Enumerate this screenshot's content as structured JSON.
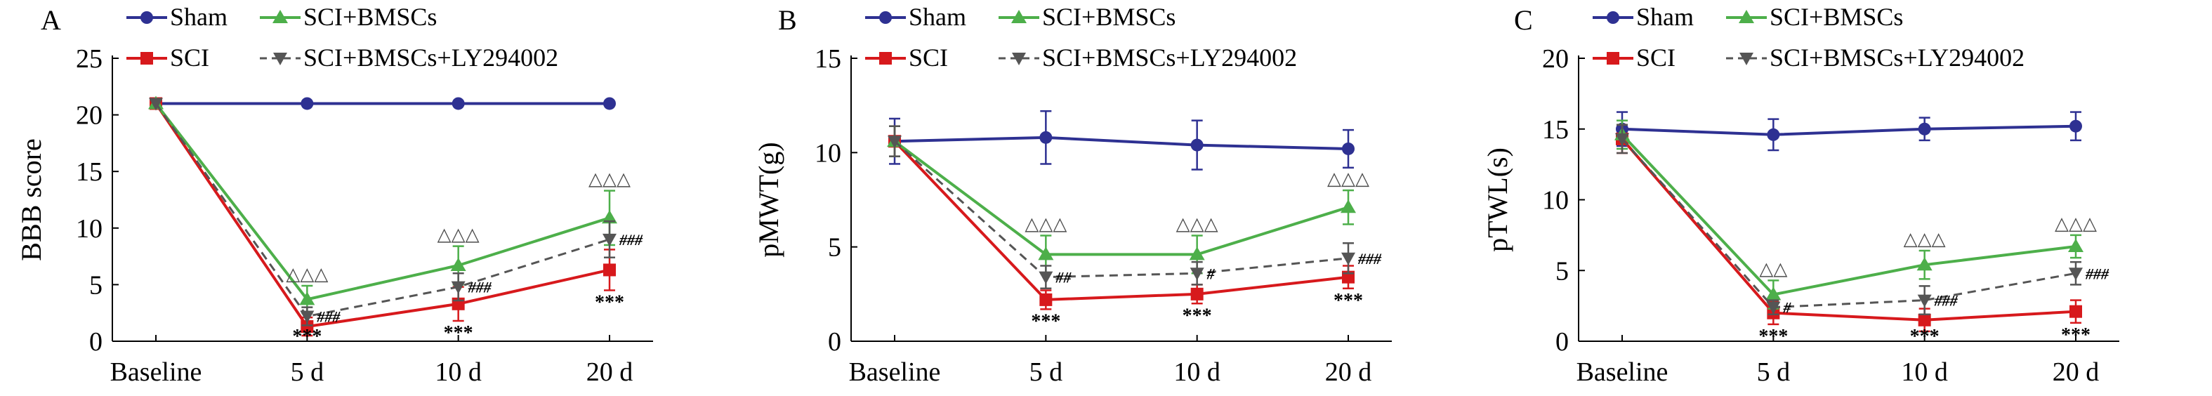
{
  "colors": {
    "Sham": "#2e3192",
    "SCI": "#d7191c",
    "SCI+BMSCs": "#4daf4a",
    "SCI+BMSCs+LY294002": "#555555",
    "axis": "#000000"
  },
  "chart_data": [
    {
      "type": "line",
      "panel": "A",
      "categories": [
        "Baseline",
        "5 d",
        "10 d",
        "20 d"
      ],
      "ylabel": "BBB score",
      "xlabel": "",
      "ylim": [
        0,
        25
      ],
      "yticks": [
        0,
        5,
        10,
        15,
        20,
        25
      ],
      "legend": "top",
      "series": [
        {
          "name": "Sham",
          "values": [
            21,
            21,
            21,
            21
          ],
          "errors": [
            0,
            0,
            0,
            0
          ]
        },
        {
          "name": "SCI",
          "values": [
            21,
            1.3,
            3.3,
            6.3
          ],
          "errors": [
            0,
            0.8,
            1.5,
            1.8
          ]
        },
        {
          "name": "SCI+BMSCs",
          "values": [
            21,
            3.7,
            6.7,
            10.9
          ],
          "errors": [
            0,
            1.2,
            1.7,
            2.4
          ]
        },
        {
          "name": "SCI+BMSCs+LY294002",
          "values": [
            21,
            2.2,
            4.8,
            9.0
          ],
          "errors": [
            0,
            0.8,
            1.2,
            1.6
          ]
        }
      ],
      "annotations": {
        "triangles": [
          "",
          "△△△",
          "△△△",
          "△△△"
        ],
        "hashes": [
          "",
          "###",
          "###",
          "###"
        ],
        "stars": [
          "",
          "***",
          "***",
          "***"
        ]
      }
    },
    {
      "type": "line",
      "panel": "B",
      "categories": [
        "Baseline",
        "5 d",
        "10 d",
        "20 d"
      ],
      "ylabel": "pMWT(g)",
      "xlabel": "",
      "ylim": [
        0,
        15
      ],
      "yticks": [
        0,
        5,
        10,
        15
      ],
      "legend": "top",
      "series": [
        {
          "name": "Sham",
          "values": [
            10.6,
            10.8,
            10.4,
            10.2
          ],
          "errors": [
            1.2,
            1.4,
            1.3,
            1.0
          ]
        },
        {
          "name": "SCI",
          "values": [
            10.6,
            2.2,
            2.5,
            3.4
          ],
          "errors": [
            0.8,
            0.5,
            0.5,
            0.6
          ]
        },
        {
          "name": "SCI+BMSCs",
          "values": [
            10.6,
            4.6,
            4.6,
            7.1
          ],
          "errors": [
            0.8,
            1.0,
            1.0,
            0.9
          ]
        },
        {
          "name": "SCI+BMSCs+LY294002",
          "values": [
            10.6,
            3.4,
            3.6,
            4.4
          ],
          "errors": [
            0.8,
            0.6,
            0.6,
            0.8
          ]
        }
      ],
      "annotations": {
        "triangles": [
          "",
          "△△△",
          "△△△",
          "△△△"
        ],
        "hashes": [
          "",
          "##",
          "#",
          "###"
        ],
        "stars": [
          "",
          "***",
          "***",
          "***"
        ]
      }
    },
    {
      "type": "line",
      "panel": "C",
      "categories": [
        "Baseline",
        "5 d",
        "10 d",
        "20 d"
      ],
      "ylabel": "pTWL(s)",
      "xlabel": "",
      "ylim": [
        0,
        20
      ],
      "yticks": [
        0,
        5,
        10,
        15,
        20
      ],
      "legend": "top",
      "series": [
        {
          "name": "Sham",
          "values": [
            15.0,
            14.6,
            15.0,
            15.2
          ],
          "errors": [
            1.2,
            1.1,
            0.8,
            1.0
          ]
        },
        {
          "name": "SCI",
          "values": [
            14.3,
            2.0,
            1.5,
            2.1
          ],
          "errors": [
            1.0,
            0.8,
            0.8,
            0.8
          ]
        },
        {
          "name": "SCI+BMSCs",
          "values": [
            14.6,
            3.3,
            5.4,
            6.7
          ],
          "errors": [
            1.0,
            1.0,
            1.0,
            0.8
          ]
        },
        {
          "name": "SCI+BMSCs+LY294002",
          "values": [
            14.3,
            2.4,
            2.9,
            4.8
          ],
          "errors": [
            1.0,
            0.5,
            1.0,
            0.8
          ]
        }
      ],
      "annotations": {
        "triangles": [
          "",
          "△△",
          "△△△",
          "△△△"
        ],
        "hashes": [
          "",
          "#",
          "###",
          "###"
        ],
        "stars": [
          "",
          "***",
          "***",
          "***"
        ]
      }
    }
  ]
}
